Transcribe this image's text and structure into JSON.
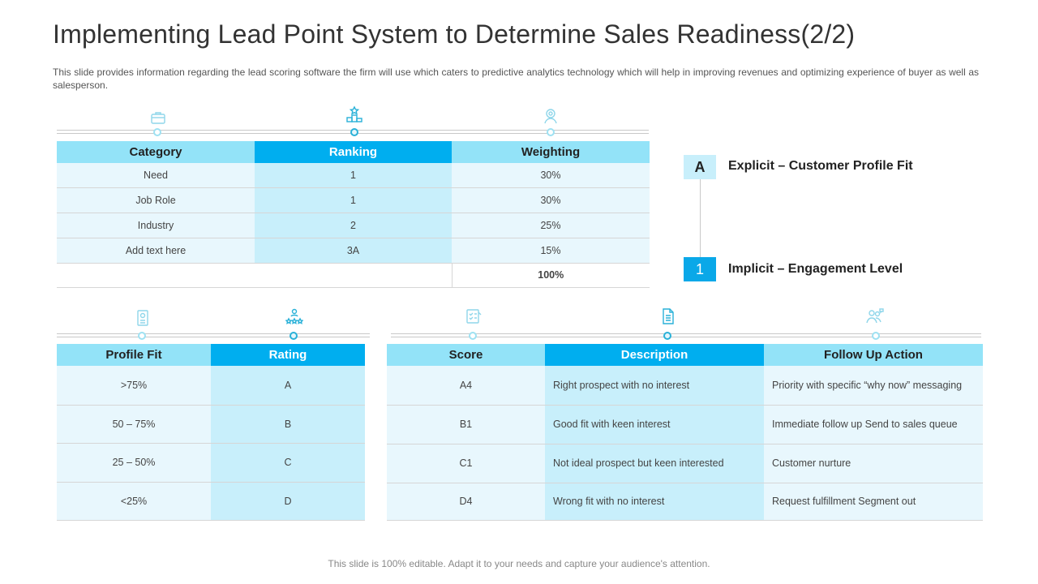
{
  "title": "Implementing Lead Point System to Determine Sales Readiness(2/2)",
  "subtitle": "This slide provides information regarding the lead scoring software the firm will use which caters to predictive analytics technology which will help in improving revenues and optimizing experience of buyer as well as salesperson.",
  "table1": {
    "headers": [
      "Category",
      "Ranking",
      "Weighting"
    ],
    "rows": [
      [
        "Need",
        "1",
        "30%"
      ],
      [
        "Job Role",
        "1",
        "30%"
      ],
      [
        "Industry",
        "2",
        "25%"
      ],
      [
        "Add text here",
        "3A",
        "15%"
      ]
    ],
    "total": "100%",
    "icons": [
      "briefcase-icon",
      "ranking-podium-icon",
      "award-person-icon"
    ]
  },
  "steps": [
    {
      "badge": "A",
      "label": "Explicit – Customer Profile Fit"
    },
    {
      "badge": "1",
      "label": "Implicit – Engagement Level"
    }
  ],
  "table2": {
    "headers": [
      "Profile Fit",
      "Rating"
    ],
    "rows": [
      [
        ">75%",
        "A"
      ],
      [
        "50 – 75%",
        "B"
      ],
      [
        "25 – 50%",
        "C"
      ],
      [
        "<25%",
        "D"
      ]
    ],
    "icons": [
      "profile-card-icon",
      "team-rating-icon"
    ]
  },
  "table3": {
    "headers": [
      "Score",
      "Description",
      "Follow Up Action"
    ],
    "rows": [
      [
        "A4",
        "Right prospect with no interest",
        "Priority with specific “why now” messaging"
      ],
      [
        "B1",
        "Good fit with keen interest",
        "Immediate follow up Send to sales queue"
      ],
      [
        "C1",
        "Not ideal prospect but keen interested",
        "Customer nurture"
      ],
      [
        "D4",
        "Wrong fit with no interest",
        "Request fulfillment Segment out"
      ]
    ],
    "icons": [
      "score-sheet-icon",
      "document-icon",
      "people-chat-icon"
    ]
  },
  "footer": "This slide is 100% editable. Adapt it to your needs and capture your audience's attention.",
  "colors": {
    "header_light": "#93e3f8",
    "header_accent": "#00aeef",
    "cell_light": "#e8f7fd",
    "cell_accent": "#c8effb",
    "badge_dark": "#0aa8e8"
  }
}
